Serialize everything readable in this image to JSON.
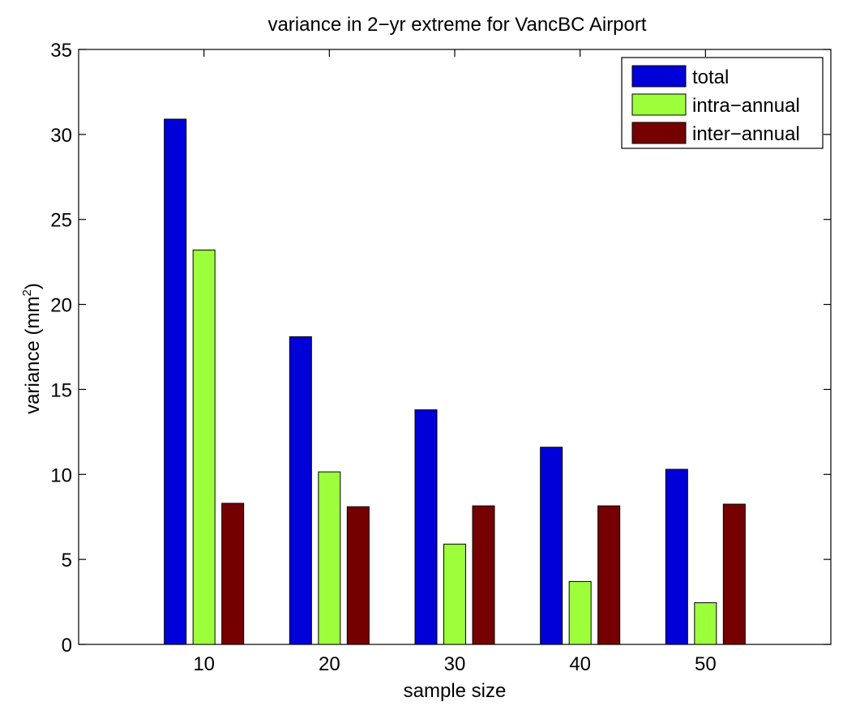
{
  "chart_data": {
    "type": "bar",
    "title": "variance in 2−yr extreme for VancBC Airport",
    "xlabel": "sample size",
    "ylabel": "variance (mm",
    "ylabel_superscript": "2",
    "ylabel_suffix": ")",
    "categories": [
      "10",
      "20",
      "30",
      "40",
      "50"
    ],
    "ylim": [
      0,
      35
    ],
    "yticks": [
      "0",
      "5",
      "10",
      "15",
      "20",
      "25",
      "30",
      "35"
    ],
    "legend_position": "top-right",
    "grid": false,
    "series": [
      {
        "name": "total",
        "color": "#0000d8",
        "values": [
          30.9,
          18.1,
          13.8,
          11.6,
          10.3
        ]
      },
      {
        "name": "intra−annual",
        "color": "#9dff3c",
        "values": [
          23.2,
          10.15,
          5.9,
          3.7,
          2.45
        ]
      },
      {
        "name": "inter−annual",
        "color": "#750000",
        "values": [
          8.3,
          8.1,
          8.15,
          8.15,
          8.25
        ]
      }
    ]
  }
}
